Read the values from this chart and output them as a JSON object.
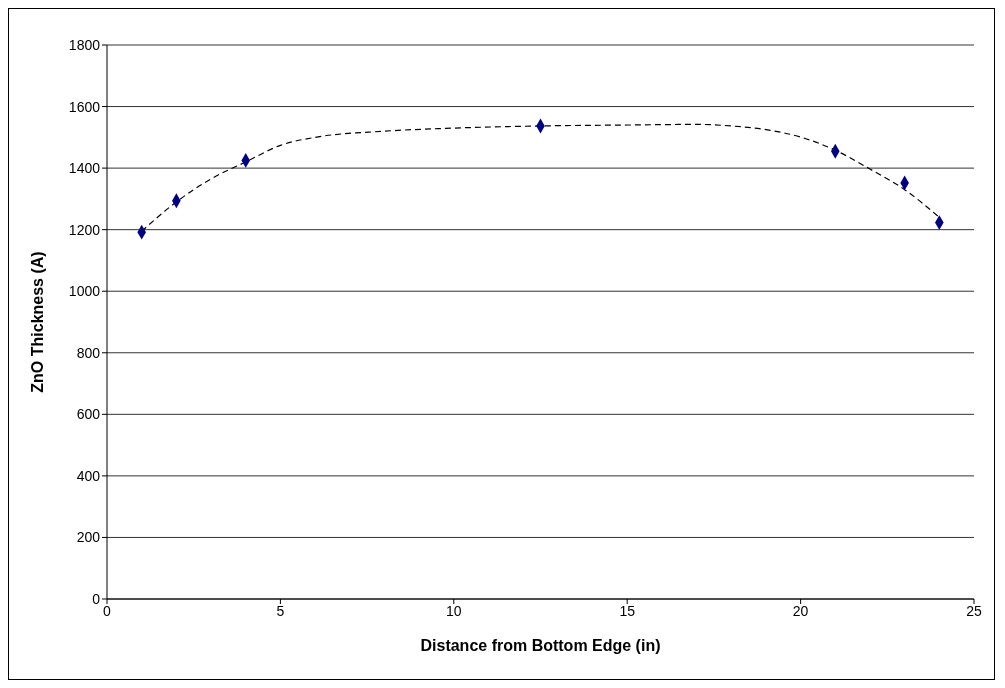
{
  "chart_data": {
    "type": "scatter",
    "xlabel": "Distance from Bottom Edge (in)",
    "ylabel": "ZnO Thickness (A)",
    "xlim": [
      0,
      25
    ],
    "xticks": [
      0,
      5,
      10,
      15,
      20,
      25
    ],
    "ylim": [
      0,
      1800
    ],
    "yticks": [
      0,
      200,
      400,
      600,
      800,
      1000,
      1200,
      1400,
      1600,
      1800
    ],
    "grid": "y",
    "legend": false,
    "series": [
      {
        "color": "#000080",
        "marker": "diamond",
        "x": [
          1,
          2,
          4,
          12.5,
          21,
          23,
          24
        ],
        "values": [
          1192,
          1294,
          1425,
          1537,
          1455,
          1352,
          1223
        ]
      },
      {
        "type": "line",
        "color": "#000000",
        "line_style": "dashed",
        "marker": "none",
        "x": [
          1,
          2,
          3,
          4,
          5,
          6,
          8,
          10,
          12.5,
          15,
          17,
          18,
          19,
          20,
          21,
          22,
          23,
          24
        ],
        "values": [
          1195,
          1290,
          1365,
          1420,
          1474,
          1500,
          1520,
          1530,
          1537,
          1540,
          1542,
          1537,
          1525,
          1501,
          1458,
          1397,
          1330,
          1240
        ]
      }
    ]
  }
}
